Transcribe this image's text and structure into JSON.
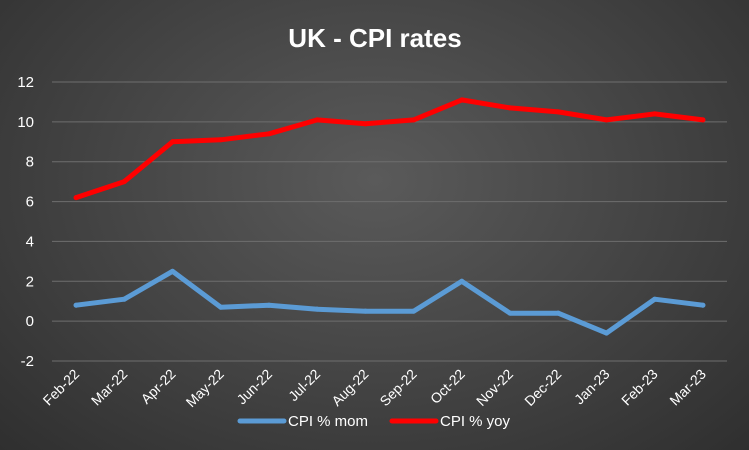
{
  "chart_data": {
    "type": "line",
    "title": "UK - CPI rates",
    "xlabel": "",
    "ylabel": "",
    "categories": [
      "Feb-22",
      "Mar-22",
      "Apr-22",
      "May-22",
      "Jun-22",
      "Jul-22",
      "Aug-22",
      "Sep-22",
      "Oct-22",
      "Nov-22",
      "Dec-22",
      "Jan-23",
      "Feb-23",
      "Mar-23"
    ],
    "ylim": [
      -2,
      12
    ],
    "yticks": [
      "12",
      "10",
      "8",
      "6",
      "4",
      "2",
      "0",
      "-2"
    ],
    "grid": true,
    "legend": "bottom",
    "series": [
      {
        "name": "CPI % mom",
        "color": "#5b9bd5",
        "values": [
          0.8,
          1.1,
          2.5,
          0.7,
          0.8,
          0.6,
          0.5,
          0.5,
          2.0,
          0.4,
          0.4,
          -0.6,
          1.1,
          0.8
        ]
      },
      {
        "name": "CPI % yoy",
        "color": "#ff0000",
        "values": [
          6.2,
          7.0,
          9.0,
          9.1,
          9.4,
          10.1,
          9.9,
          10.1,
          11.1,
          10.7,
          10.5,
          10.1,
          10.4,
          10.1
        ]
      }
    ]
  }
}
